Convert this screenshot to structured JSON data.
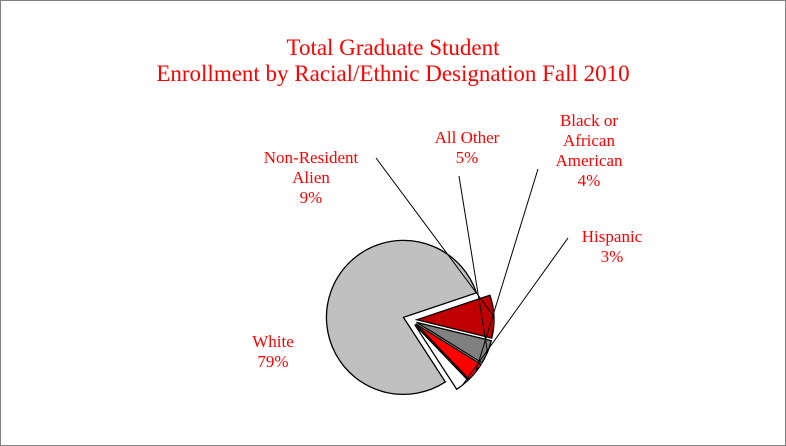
{
  "chart_data": {
    "type": "pie",
    "title": [
      "Total Graduate Student",
      "Enrollment by Racial/Ethnic Designation Fall 2010"
    ],
    "slices": [
      {
        "name": "White",
        "label_lines": [
          "White"
        ],
        "value": 79,
        "value_label": "79%",
        "color": "#c0c0c0"
      },
      {
        "name": "Non-Resident Alien",
        "label_lines": [
          "Non-Resident",
          "Alien"
        ],
        "value": 9,
        "value_label": "9%",
        "color": "#c00000"
      },
      {
        "name": "All Other",
        "label_lines": [
          "All Other"
        ],
        "value": 5,
        "value_label": "5%",
        "color": "#808080"
      },
      {
        "name": "Black or African American",
        "label_lines": [
          "Black or",
          "African",
          "American"
        ],
        "value": 4,
        "value_label": "4%",
        "color": "#ff0000"
      },
      {
        "name": "Hispanic",
        "label_lines": [
          "Hispanic"
        ],
        "value": 3,
        "value_label": "3%",
        "color": "#ffffff"
      }
    ],
    "exploded": true,
    "label_color": "#ff0000",
    "border_color": "#000000"
  }
}
